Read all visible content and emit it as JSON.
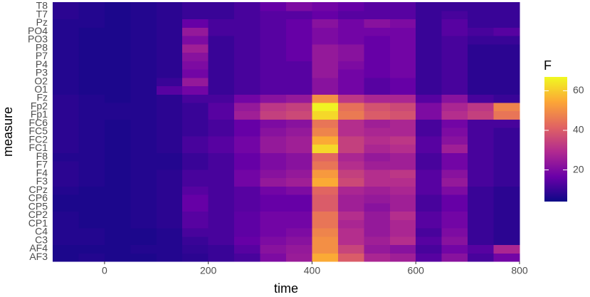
{
  "chart_data": {
    "type": "heatmap",
    "x_label": "time",
    "y_label": "measure",
    "legend_title": "F",
    "x": [
      -75,
      -25,
      25,
      75,
      125,
      175,
      225,
      275,
      325,
      375,
      425,
      475,
      525,
      575,
      625,
      675,
      725,
      775
    ],
    "xlim": [
      -100,
      800
    ],
    "xticks": [
      0,
      200,
      400,
      600,
      800
    ],
    "categories": [
      "AF3",
      "AF4",
      "C3",
      "C4",
      "CP1",
      "CP2",
      "CP5",
      "CP6",
      "CPz",
      "F3",
      "F4",
      "F7",
      "F8",
      "FC1",
      "FC2",
      "FC5",
      "FC6",
      "Fp1",
      "Fp2",
      "Fz",
      "O1",
      "O2",
      "P3",
      "P4",
      "P7",
      "P8",
      "PO3",
      "PO4",
      "Pz",
      "T7",
      "T8"
    ],
    "values": [
      [
        6,
        7,
        6,
        6,
        7,
        8,
        10,
        12,
        20,
        25,
        55,
        40,
        28,
        26,
        14,
        22,
        12,
        18
      ],
      [
        6,
        6,
        6,
        7,
        7,
        9,
        10,
        14,
        22,
        24,
        50,
        35,
        24,
        22,
        12,
        18,
        14,
        28
      ],
      [
        7,
        7,
        6,
        6,
        7,
        10,
        12,
        16,
        20,
        22,
        50,
        30,
        26,
        30,
        14,
        22,
        10,
        8
      ],
      [
        7,
        7,
        6,
        6,
        7,
        12,
        12,
        15,
        18,
        20,
        48,
        30,
        24,
        28,
        12,
        20,
        10,
        8
      ],
      [
        7,
        6,
        6,
        7,
        8,
        14,
        12,
        15,
        18,
        18,
        45,
        28,
        24,
        28,
        14,
        18,
        10,
        8
      ],
      [
        7,
        6,
        6,
        7,
        8,
        14,
        12,
        15,
        18,
        18,
        45,
        30,
        24,
        30,
        14,
        18,
        10,
        8
      ],
      [
        6,
        6,
        6,
        7,
        8,
        16,
        12,
        14,
        16,
        16,
        40,
        26,
        22,
        26,
        12,
        16,
        10,
        8
      ],
      [
        6,
        6,
        6,
        7,
        8,
        16,
        12,
        14,
        16,
        16,
        40,
        26,
        24,
        26,
        12,
        16,
        10,
        8
      ],
      [
        7,
        6,
        6,
        7,
        8,
        14,
        12,
        14,
        18,
        20,
        42,
        28,
        26,
        28,
        14,
        20,
        10,
        8
      ],
      [
        8,
        7,
        6,
        7,
        8,
        12,
        12,
        18,
        24,
        26,
        55,
        36,
        30,
        30,
        14,
        24,
        12,
        10
      ],
      [
        8,
        7,
        6,
        7,
        8,
        12,
        12,
        18,
        22,
        24,
        52,
        34,
        30,
        32,
        14,
        22,
        12,
        10
      ],
      [
        8,
        7,
        6,
        7,
        7,
        10,
        12,
        16,
        20,
        22,
        45,
        30,
        26,
        26,
        12,
        18,
        12,
        10
      ],
      [
        7,
        7,
        6,
        7,
        7,
        10,
        12,
        16,
        20,
        22,
        42,
        28,
        24,
        26,
        12,
        18,
        12,
        10
      ],
      [
        8,
        7,
        6,
        7,
        8,
        12,
        14,
        18,
        24,
        26,
        62,
        34,
        28,
        30,
        14,
        26,
        12,
        10
      ],
      [
        8,
        7,
        6,
        7,
        8,
        12,
        14,
        18,
        24,
        26,
        55,
        34,
        30,
        32,
        14,
        22,
        12,
        10
      ],
      [
        8,
        7,
        6,
        7,
        8,
        10,
        12,
        16,
        22,
        24,
        48,
        30,
        28,
        28,
        12,
        20,
        12,
        10
      ],
      [
        8,
        7,
        6,
        7,
        8,
        10,
        12,
        16,
        20,
        22,
        45,
        30,
        26,
        28,
        12,
        18,
        12,
        12
      ],
      [
        8,
        7,
        7,
        7,
        8,
        10,
        14,
        26,
        34,
        36,
        62,
        46,
        40,
        38,
        20,
        30,
        34,
        45
      ],
      [
        8,
        7,
        7,
        7,
        8,
        10,
        14,
        24,
        32,
        34,
        66,
        44,
        38,
        36,
        20,
        28,
        32,
        48
      ],
      [
        8,
        7,
        6,
        7,
        8,
        12,
        12,
        18,
        22,
        24,
        50,
        32,
        28,
        28,
        14,
        22,
        12,
        10
      ],
      [
        7,
        6,
        6,
        7,
        14,
        18,
        10,
        12,
        14,
        14,
        22,
        18,
        14,
        16,
        10,
        12,
        8,
        8
      ],
      [
        7,
        6,
        6,
        7,
        10,
        24,
        10,
        12,
        14,
        14,
        22,
        18,
        14,
        16,
        10,
        12,
        8,
        8
      ],
      [
        7,
        6,
        6,
        7,
        8,
        18,
        10,
        12,
        14,
        14,
        24,
        18,
        16,
        18,
        10,
        12,
        8,
        8
      ],
      [
        7,
        6,
        6,
        7,
        8,
        20,
        10,
        12,
        14,
        14,
        24,
        20,
        16,
        18,
        10,
        12,
        8,
        8
      ],
      [
        7,
        6,
        6,
        7,
        8,
        22,
        10,
        12,
        14,
        16,
        24,
        22,
        16,
        18,
        10,
        12,
        8,
        8
      ],
      [
        7,
        6,
        6,
        7,
        8,
        26,
        10,
        12,
        14,
        16,
        24,
        22,
        16,
        18,
        10,
        12,
        8,
        8
      ],
      [
        7,
        6,
        6,
        7,
        8,
        20,
        10,
        12,
        14,
        16,
        20,
        18,
        16,
        18,
        10,
        12,
        10,
        10
      ],
      [
        7,
        6,
        6,
        7,
        8,
        24,
        12,
        12,
        14,
        16,
        20,
        18,
        18,
        18,
        10,
        14,
        12,
        14
      ],
      [
        7,
        7,
        6,
        7,
        8,
        16,
        12,
        12,
        14,
        16,
        22,
        18,
        22,
        20,
        10,
        14,
        10,
        10
      ],
      [
        8,
        7,
        6,
        7,
        8,
        10,
        10,
        12,
        14,
        14,
        16,
        14,
        14,
        14,
        10,
        12,
        10,
        10
      ],
      [
        8,
        7,
        6,
        7,
        8,
        10,
        10,
        12,
        16,
        20,
        18,
        16,
        14,
        14,
        10,
        10,
        10,
        10
      ]
    ],
    "zlim": [
      4,
      67
    ],
    "zticks": [
      20,
      40,
      60
    ],
    "colorscale": [
      "#0d0887",
      "#6a00a8",
      "#b12a90",
      "#e16462",
      "#fca636",
      "#f0f921"
    ]
  }
}
